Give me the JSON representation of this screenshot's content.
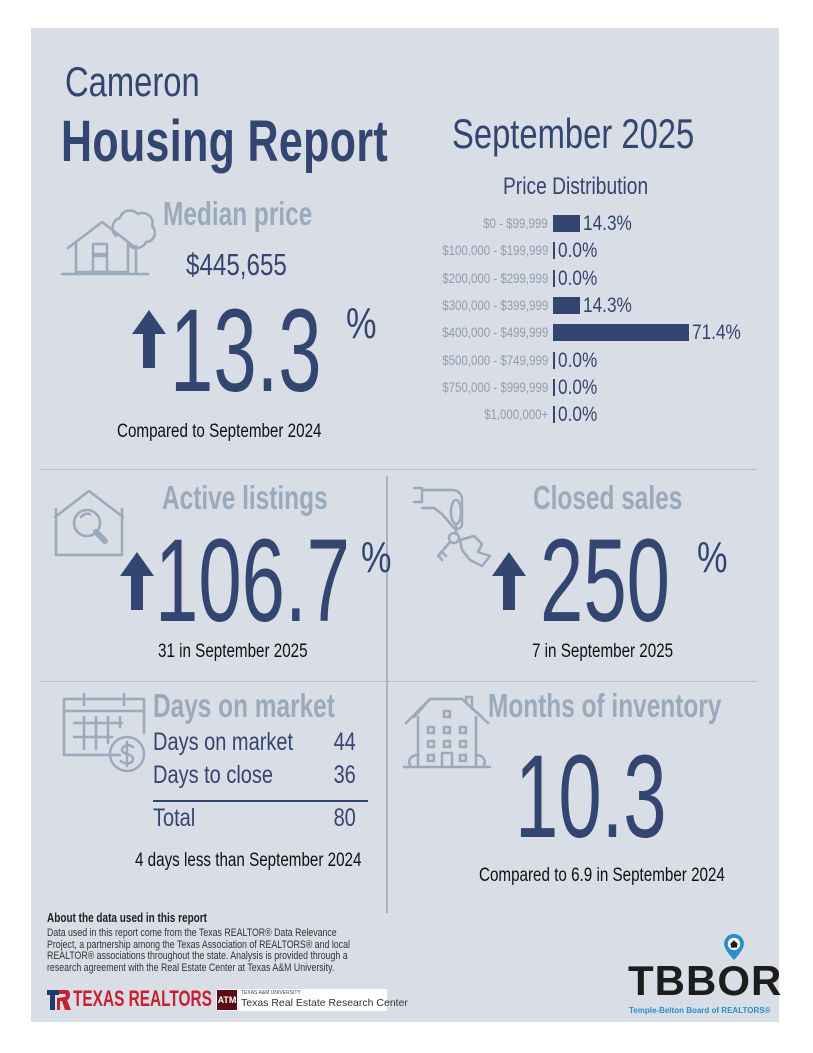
{
  "header": {
    "city": "Cameron",
    "report_title": "Housing Report",
    "month": "September 2025"
  },
  "price_distribution": {
    "title": "Price Distribution",
    "rows": [
      {
        "label": "$0 - $99,999",
        "value": 14.3,
        "display": "14.3%"
      },
      {
        "label": "$100,000 - $199,999",
        "value": 0.0,
        "display": "0.0%"
      },
      {
        "label": "$200,000 - $299,999",
        "value": 0.0,
        "display": "0.0%"
      },
      {
        "label": "$300,000 - $399,999",
        "value": 14.3,
        "display": "14.3%"
      },
      {
        "label": "$400,000 - $499,999",
        "value": 71.4,
        "display": "71.4%"
      },
      {
        "label": "$500,000 - $749,999",
        "value": 0.0,
        "display": "0.0%"
      },
      {
        "label": "$750,000 - $999,999",
        "value": 0.0,
        "display": "0.0%"
      },
      {
        "label": "$1,000,000+",
        "value": 0.0,
        "display": "0.0%"
      }
    ],
    "color": "#334671"
  },
  "chart_data": {
    "type": "bar",
    "title": "Price Distribution",
    "orientation": "horizontal",
    "categories": [
      "$0 - $99,999",
      "$100,000 - $199,999",
      "$200,000 - $299,999",
      "$300,000 - $399,999",
      "$400,000 - $499,999",
      "$500,000 - $749,999",
      "$750,000 - $999,999",
      "$1,000,000+"
    ],
    "values": [
      14.3,
      0.0,
      0.0,
      14.3,
      71.4,
      0.0,
      0.0,
      0.0
    ],
    "unit": "%",
    "xlabel": "",
    "ylabel": ""
  },
  "median_price": {
    "heading": "Median price",
    "value": "$445,655",
    "change": "13.3",
    "change_unit": "%",
    "direction": "up",
    "caption": "Compared to September 2024",
    "icon": "house-tree-icon"
  },
  "active_listings": {
    "heading": "Active listings",
    "change": "106.7",
    "change_unit": "%",
    "direction": "up",
    "caption": "31 in September 2025",
    "icon": "house-search-icon"
  },
  "closed_sales": {
    "heading": "Closed sales",
    "change": "250",
    "change_unit": "%",
    "direction": "up",
    "caption": "7 in September 2025",
    "icon": "hand-keys-icon"
  },
  "days_on_market": {
    "heading": "Days on market",
    "rows": [
      {
        "label": "Days on market",
        "value": "44"
      },
      {
        "label": "Days to close",
        "value": "36"
      }
    ],
    "total_label": "Total",
    "total_value": "80",
    "caption": "4 days less than September 2024",
    "icon": "calendar-dollar-icon"
  },
  "months_inventory": {
    "heading": "Months of inventory",
    "value": "10.3",
    "caption": "Compared to 6.9 in September 2024",
    "icon": "apartment-building-icon"
  },
  "footer": {
    "about_title": "About the data used in this report",
    "about_body": "Data used in this report come from the Texas REALTOR® Data Relevance Project, a partnership among the Texas Association of REALTORS® and local REALTOR® associations throughout the state. Analysis is provided through a research agreement with the Real Estate Center at Texas A&M University.",
    "texas_realtors": "TEXAS REALTORS",
    "tamu_small": "TEXAS A&M UNIVERSITY",
    "tamu_name": "Texas Real Estate Research Center",
    "tamu_mark": "ATM",
    "tbbor_logo": "TBBOR",
    "tbbor_name": "Temple-Belton Board of REALTORS®"
  },
  "colors": {
    "navy": "#334671",
    "muted_heading": "#9aaabd",
    "panel_bg": "#d9dde5",
    "texas_red": "#c8202e",
    "tamu_maroon": "#5b0b17",
    "tbbor_blue": "#2a8fc9"
  }
}
